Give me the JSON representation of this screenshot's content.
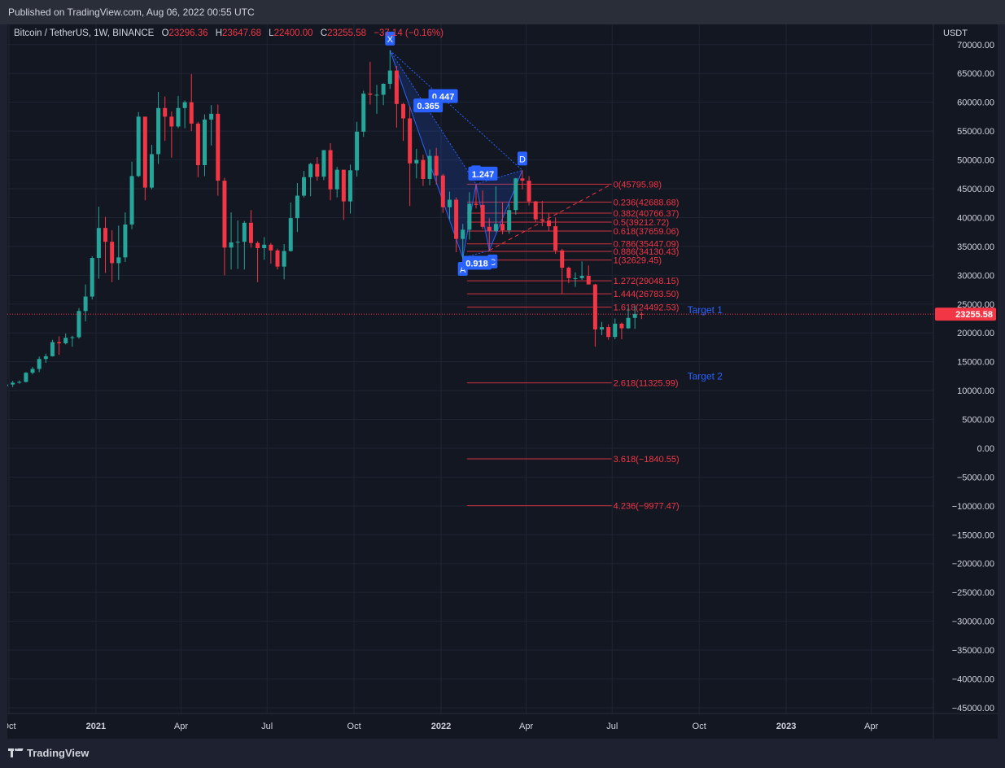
{
  "header": {
    "published": "Published on TradingView.com, Aug 06, 2022 00:55 UTC"
  },
  "legend": {
    "symbol": "Bitcoin / TetherUS, 1W, BINANCE",
    "open_label": "O",
    "open": "23296.36",
    "high_label": "H",
    "high": "23647.68",
    "low_label": "L",
    "low": "22400.00",
    "close_label": "C",
    "close": "23255.58",
    "change": "−37.14 (−0.16%)"
  },
  "footer": {
    "brand": "TradingView"
  },
  "colors": {
    "up": "#26a69a",
    "down": "#f23645",
    "pattern": "#2962ff",
    "background": "#131722",
    "grid": "#1f2433",
    "axis_text": "#d1d4dc"
  },
  "chart_data": {
    "type": "candlestick",
    "title": "Bitcoin / TetherUS, 1W, BINANCE",
    "y_unit": "USDT",
    "ylim": [
      -46000,
      73500
    ],
    "y_ticks": [
      70000,
      65000,
      60000,
      55000,
      50000,
      45000,
      40000,
      35000,
      30000,
      25000,
      20000,
      15000,
      10000,
      5000,
      0,
      -5000,
      -10000,
      -15000,
      -20000,
      -25000,
      -30000,
      -35000,
      -40000,
      -45000
    ],
    "x_ticks": [
      {
        "label": "Oct",
        "date": "2020-10-01"
      },
      {
        "label": "2021",
        "date": "2021-01-01"
      },
      {
        "label": "Apr",
        "date": "2021-04-01"
      },
      {
        "label": "Jul",
        "date": "2021-07-01"
      },
      {
        "label": "Oct",
        "date": "2021-10-01"
      },
      {
        "label": "2022",
        "date": "2022-01-01"
      },
      {
        "label": "Apr",
        "date": "2022-04-01"
      },
      {
        "label": "Jul",
        "date": "2022-07-01"
      },
      {
        "label": "Oct",
        "date": "2022-10-01"
      },
      {
        "label": "2023",
        "date": "2023-01-01"
      },
      {
        "label": "Apr",
        "date": "2023-04-01"
      }
    ],
    "grid": true,
    "last_price": {
      "value": 23255.58,
      "label": "23255.58"
    },
    "candles": [
      [
        "2020-09-28",
        10780,
        11500,
        10500,
        11050
      ],
      [
        "2020-10-05",
        11050,
        11700,
        10600,
        11370
      ],
      [
        "2020-10-12",
        11370,
        11750,
        11200,
        11500
      ],
      [
        "2020-10-19",
        11500,
        13200,
        11400,
        13100
      ],
      [
        "2020-10-26",
        13100,
        14100,
        12800,
        13750
      ],
      [
        "2020-11-02",
        13750,
        15900,
        13200,
        15480
      ],
      [
        "2020-11-09",
        15480,
        16400,
        14800,
        15950
      ],
      [
        "2020-11-16",
        15950,
        18800,
        15900,
        18400
      ],
      [
        "2020-11-23",
        18400,
        19400,
        16200,
        18200
      ],
      [
        "2020-11-30",
        18200,
        19900,
        18000,
        19150
      ],
      [
        "2020-12-07",
        19150,
        19500,
        17600,
        19250
      ],
      [
        "2020-12-14",
        19250,
        24300,
        19000,
        23800
      ],
      [
        "2020-12-21",
        23800,
        28400,
        22000,
        26300
      ],
      [
        "2020-12-28",
        26300,
        33300,
        25800,
        33000
      ],
      [
        "2021-01-04",
        33000,
        41900,
        29400,
        38200
      ],
      [
        "2021-01-11",
        38200,
        40100,
        30400,
        35800
      ],
      [
        "2021-01-18",
        35800,
        37800,
        28800,
        32100
      ],
      [
        "2021-01-25",
        32100,
        38600,
        29200,
        33100
      ],
      [
        "2021-02-01",
        33100,
        40900,
        32300,
        38800
      ],
      [
        "2021-02-08",
        38800,
        49700,
        38000,
        47200
      ],
      [
        "2021-02-15",
        47200,
        58300,
        47000,
        57500
      ],
      [
        "2021-02-22",
        57500,
        57500,
        43000,
        45200
      ],
      [
        "2021-03-01",
        45200,
        52600,
        44900,
        51000
      ],
      [
        "2021-03-08",
        51000,
        61800,
        49300,
        59000
      ],
      [
        "2021-03-15",
        59000,
        61000,
        53300,
        57500
      ],
      [
        "2021-03-22",
        57500,
        58400,
        50400,
        55800
      ],
      [
        "2021-03-29",
        55800,
        61100,
        55500,
        59000
      ],
      [
        "2021-04-05",
        59000,
        60300,
        55500,
        60000
      ],
      [
        "2021-04-12",
        60000,
        64900,
        55000,
        56300
      ],
      [
        "2021-04-19",
        56300,
        56600,
        47000,
        49100
      ],
      [
        "2021-04-26",
        49100,
        57900,
        47200,
        57000
      ],
      [
        "2021-05-03",
        57000,
        59500,
        52500,
        58000
      ],
      [
        "2021-05-10",
        58000,
        59600,
        43800,
        46400
      ],
      [
        "2021-05-17",
        46400,
        46900,
        30000,
        34800
      ],
      [
        "2021-05-24",
        34800,
        40900,
        31000,
        35700
      ],
      [
        "2021-05-31",
        35700,
        39500,
        31100,
        35800
      ],
      [
        "2021-06-07",
        35800,
        39400,
        31000,
        39100
      ],
      [
        "2021-06-14",
        39100,
        41300,
        34800,
        35600
      ],
      [
        "2021-06-21",
        35600,
        35900,
        28800,
        34700
      ],
      [
        "2021-06-28",
        34700,
        36600,
        32700,
        35300
      ],
      [
        "2021-07-05",
        35300,
        35600,
        32000,
        34300
      ],
      [
        "2021-07-12",
        34300,
        34600,
        31000,
        31500
      ],
      [
        "2021-07-19",
        31500,
        35400,
        29300,
        34200
      ],
      [
        "2021-07-26",
        34200,
        42600,
        34100,
        39900
      ],
      [
        "2021-08-02",
        39900,
        46000,
        37500,
        43800
      ],
      [
        "2021-08-09",
        43800,
        48100,
        43500,
        47000
      ],
      [
        "2021-08-16",
        47000,
        49500,
        43700,
        49300
      ],
      [
        "2021-08-23",
        49300,
        50500,
        46400,
        47100
      ],
      [
        "2021-08-30",
        47100,
        51000,
        46500,
        51700
      ],
      [
        "2021-09-06",
        51700,
        52900,
        43000,
        44900
      ],
      [
        "2021-09-13",
        44900,
        48800,
        43500,
        48300
      ],
      [
        "2021-09-20",
        48300,
        48300,
        39600,
        42800
      ],
      [
        "2021-09-27",
        42800,
        49200,
        40700,
        48200
      ],
      [
        "2021-10-04",
        48200,
        56600,
        47100,
        54900
      ],
      [
        "2021-10-11",
        54900,
        62000,
        54000,
        61500
      ],
      [
        "2021-10-18",
        61500,
        67000,
        59600,
        61300
      ],
      [
        "2021-10-25",
        61300,
        63000,
        58000,
        61300
      ],
      [
        "2021-11-01",
        61300,
        63300,
        59500,
        63200
      ],
      [
        "2021-11-08",
        63200,
        69000,
        62300,
        65500
      ],
      [
        "2021-11-15",
        65500,
        66300,
        55600,
        59700
      ],
      [
        "2021-11-22",
        59700,
        59900,
        53300,
        57200
      ],
      [
        "2021-11-29",
        57200,
        59200,
        42000,
        49400
      ],
      [
        "2021-12-06",
        49400,
        51900,
        46800,
        50000
      ],
      [
        "2021-12-13",
        50000,
        50900,
        45500,
        46700
      ],
      [
        "2021-12-20",
        46700,
        51800,
        45600,
        50700
      ],
      [
        "2021-12-27",
        50700,
        52100,
        45700,
        47300
      ],
      [
        "2022-01-03",
        47300,
        47600,
        40800,
        41800
      ],
      [
        "2022-01-10",
        41800,
        44500,
        39700,
        43100
      ],
      [
        "2022-01-17",
        43100,
        43500,
        34000,
        36300
      ],
      [
        "2022-01-24",
        36300,
        38900,
        32900,
        37900
      ],
      [
        "2022-01-31",
        37900,
        44400,
        36200,
        42400
      ],
      [
        "2022-02-07",
        42400,
        45800,
        41600,
        42200
      ],
      [
        "2022-02-14",
        42200,
        44700,
        38000,
        38400
      ],
      [
        "2022-02-21",
        38400,
        39900,
        34300,
        37700
      ],
      [
        "2022-02-28",
        37700,
        45400,
        37500,
        38900
      ],
      [
        "2022-03-07",
        38900,
        42600,
        37100,
        37800
      ],
      [
        "2022-03-14",
        37800,
        42400,
        37200,
        41300
      ],
      [
        "2022-03-21",
        41300,
        46900,
        40500,
        46800
      ],
      [
        "2022-03-28",
        46800,
        48200,
        44900,
        46400
      ],
      [
        "2022-04-04",
        46400,
        47200,
        42100,
        42800
      ],
      [
        "2022-04-11",
        42800,
        42900,
        39200,
        39700
      ],
      [
        "2022-04-18",
        39700,
        42900,
        38500,
        39500
      ],
      [
        "2022-04-25",
        39500,
        40800,
        37600,
        38500
      ],
      [
        "2022-05-02",
        38500,
        40000,
        33700,
        34300
      ],
      [
        "2022-05-09",
        34300,
        34600,
        26700,
        31300
      ],
      [
        "2022-05-16",
        31300,
        31500,
        28600,
        29500
      ],
      [
        "2022-05-23",
        29500,
        30500,
        28000,
        29500
      ],
      [
        "2022-05-30",
        29500,
        32400,
        29200,
        29900
      ],
      [
        "2022-06-06",
        29900,
        31700,
        28900,
        28400
      ],
      [
        "2022-06-13",
        28400,
        28500,
        17600,
        20600
      ],
      [
        "2022-06-20",
        20600,
        21900,
        19600,
        21000
      ],
      [
        "2022-06-27",
        21000,
        21500,
        18800,
        19300
      ],
      [
        "2022-07-04",
        19300,
        22500,
        18900,
        21600
      ],
      [
        "2022-07-11",
        21600,
        21800,
        18900,
        20800
      ],
      [
        "2022-07-18",
        20800,
        24300,
        20700,
        22600
      ],
      [
        "2022-07-25",
        22600,
        24700,
        20700,
        23300
      ],
      [
        "2022-08-01",
        23296.36,
        23647.68,
        22400.0,
        23255.58
      ]
    ],
    "harmonic_points": [
      {
        "label": "X",
        "date": "2021-11-08",
        "price": 69000
      },
      {
        "label": "A",
        "date": "2022-01-24",
        "price": 33000
      },
      {
        "label": "B",
        "date": "2022-02-07",
        "price": 45800
      },
      {
        "label": "C",
        "date": "2022-02-21",
        "price": 34300
      },
      {
        "label": "D",
        "date": "2022-03-28",
        "price": 48200
      }
    ],
    "pattern_ratios": [
      {
        "value": "0.447",
        "between": "X-D"
      },
      {
        "value": "0.365",
        "between": "X-B"
      },
      {
        "value": "1.247",
        "between": "B-D"
      },
      {
        "value": "0.918",
        "between": "A-C"
      }
    ],
    "fib_levels": [
      {
        "ratio": "0",
        "price": 45795.98
      },
      {
        "ratio": "0.236",
        "price": 42688.68
      },
      {
        "ratio": "0.382",
        "price": 40766.37
      },
      {
        "ratio": "0.5",
        "price": 39212.72
      },
      {
        "ratio": "0.618",
        "price": 37659.06
      },
      {
        "ratio": "0.786",
        "price": 35447.09
      },
      {
        "ratio": "0.886",
        "price": 34130.43
      },
      {
        "ratio": "1",
        "price": 32629.45
      },
      {
        "ratio": "1.272",
        "price": 29048.15
      },
      {
        "ratio": "1.444",
        "price": 26783.5
      },
      {
        "ratio": "1.618",
        "price": 24492.53
      },
      {
        "ratio": "2.618",
        "price": 11325.99
      },
      {
        "ratio": "3.618",
        "price": -1840.55
      },
      {
        "ratio": "4.236",
        "price": -9977.47
      }
    ],
    "fib_labels": [
      "0(45795.98)",
      "0.236(42688.68)",
      "0.382(40766.37)",
      "0.5(39212.72)",
      "0.618(37659.06)",
      "0.786(35447.09)",
      "0.886(34130.43)",
      "1(32629.45)",
      "1.272(29048.15)",
      "1.444(26783.50)",
      "1.618(24492.53)",
      "2.618(11325.99)",
      "3.618(−1840.55)",
      "4.236(−9977.47)"
    ],
    "annotations": [
      {
        "text": "Target 1",
        "price": 24000
      },
      {
        "text": "Target 2",
        "price": 12500
      }
    ]
  }
}
